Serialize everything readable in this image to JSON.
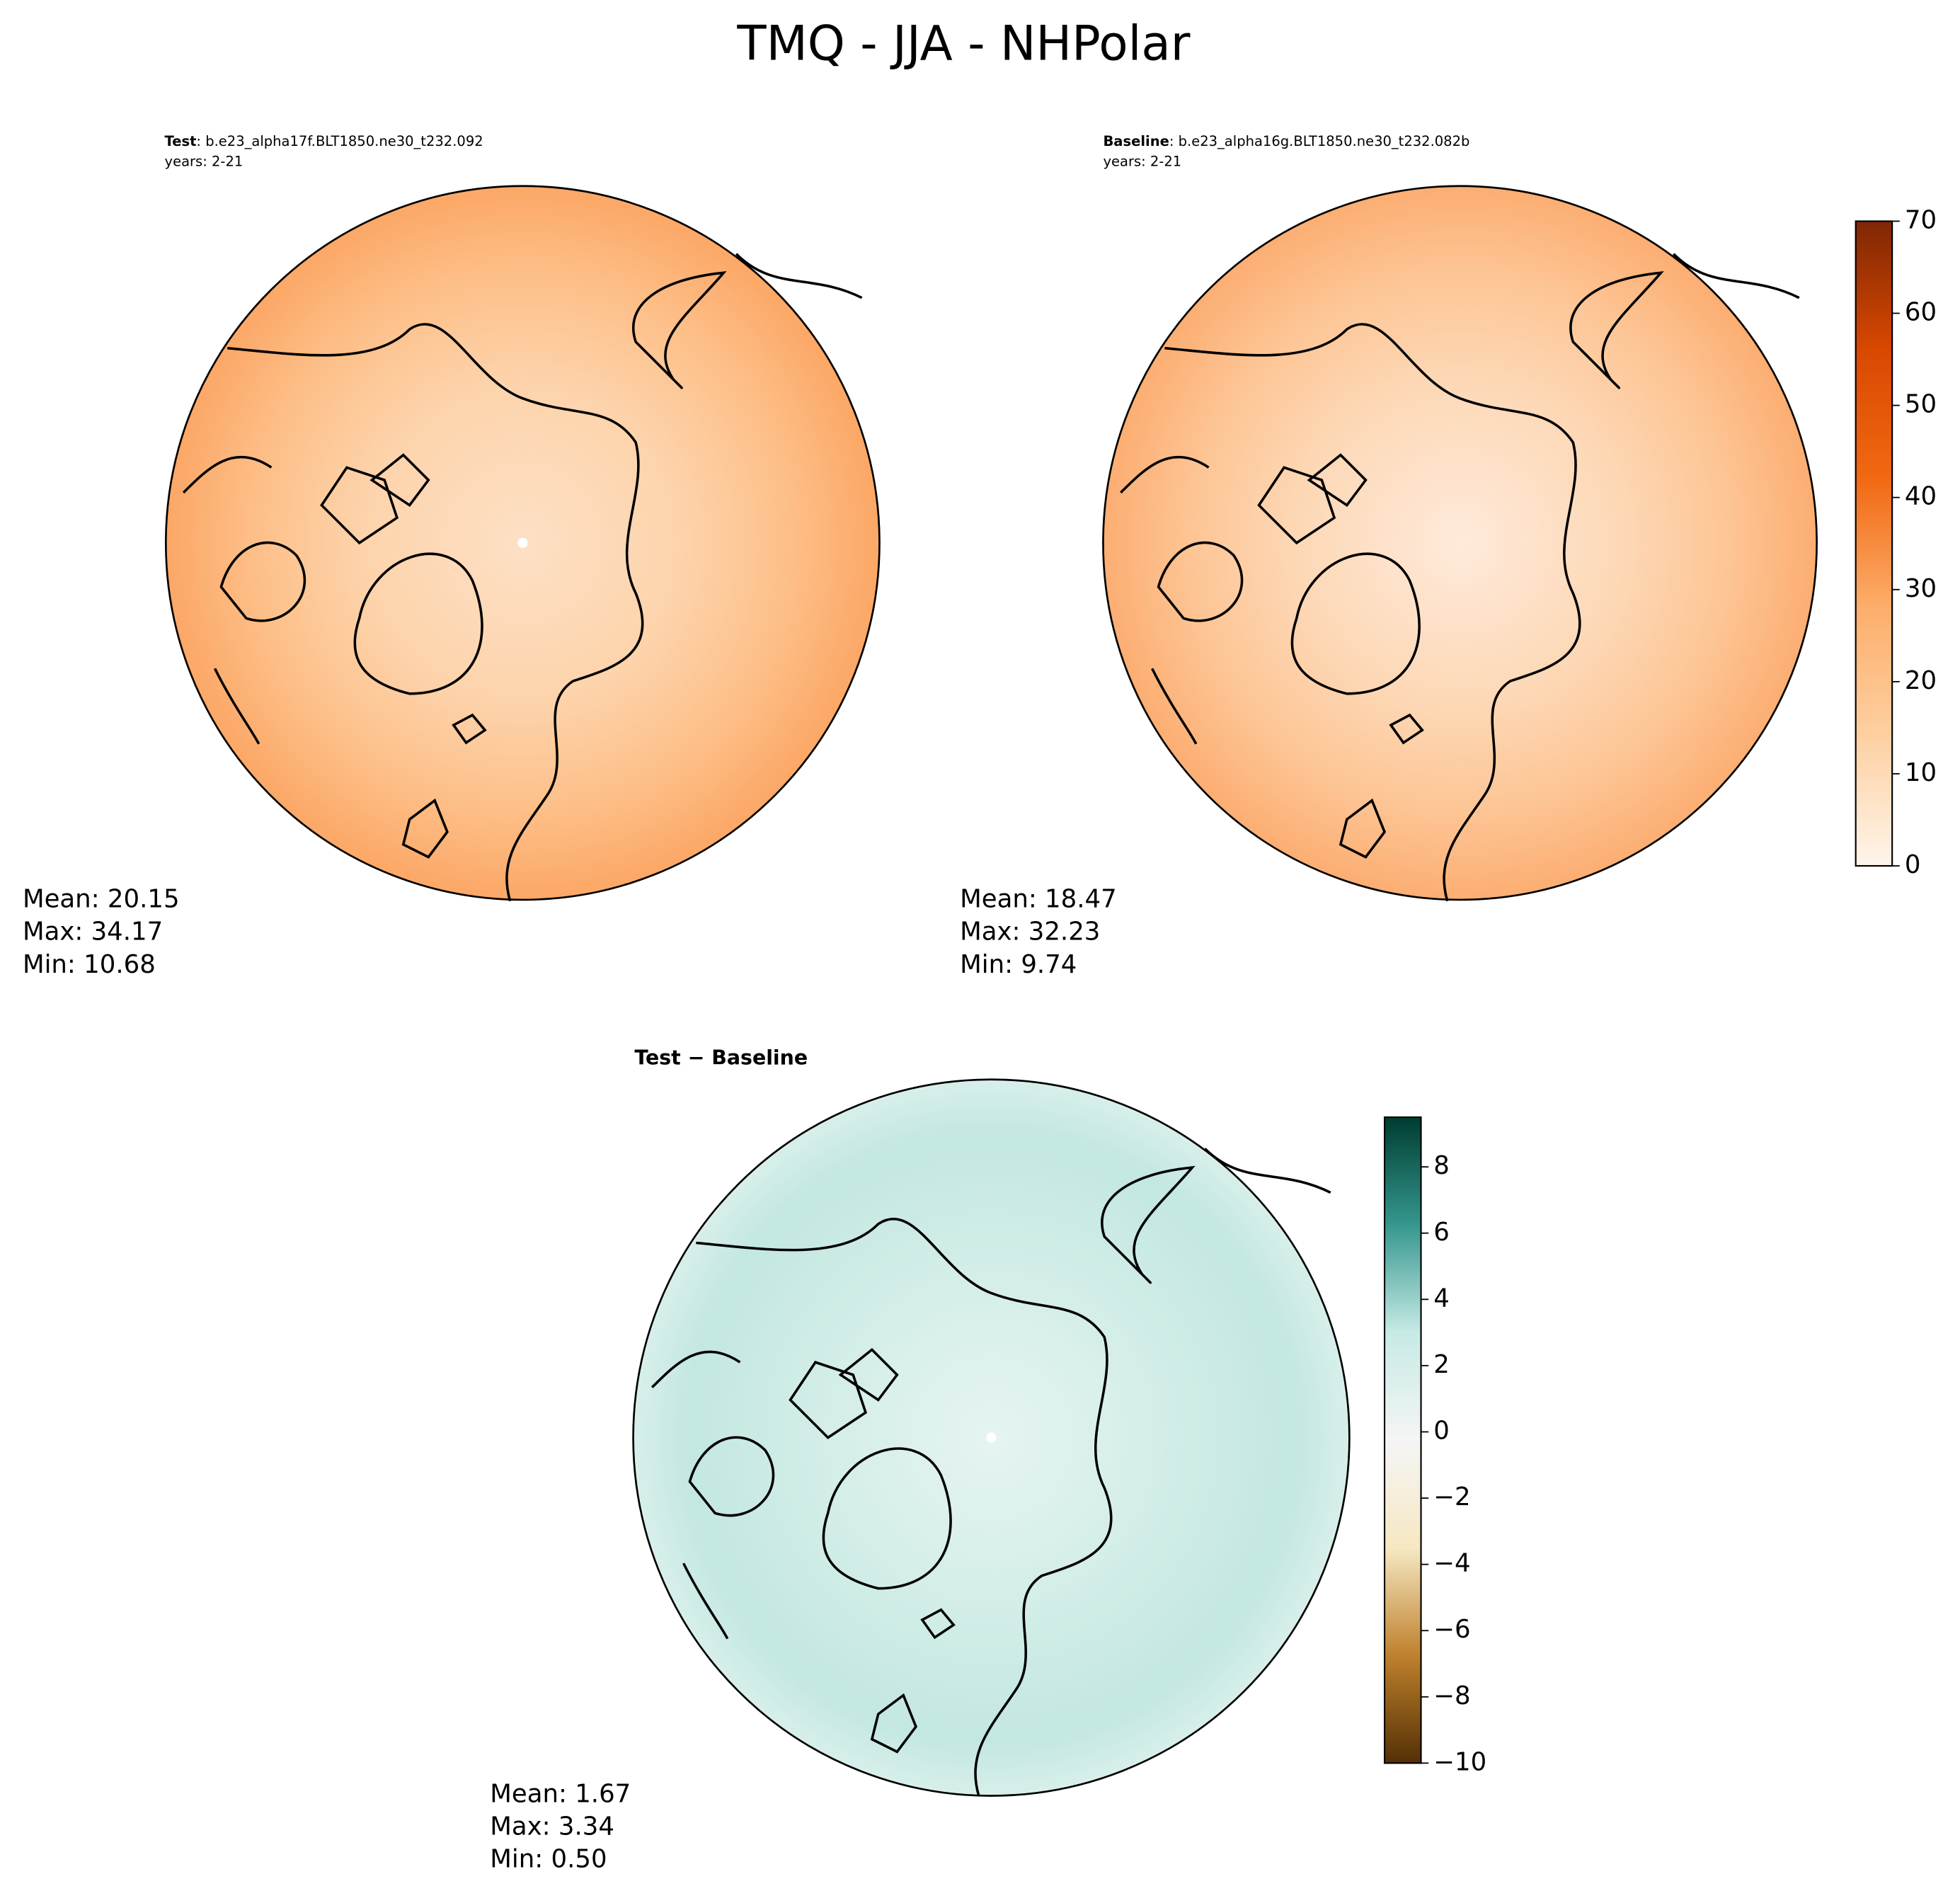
{
  "header": {
    "title": "TMQ - JJA - NHPolar"
  },
  "panels": [
    {
      "label": "Test",
      "case": ": b.e23_alpha17f.BLT1850.ne30_t232.092",
      "years": "years: 2-21",
      "stats": [
        "Mean: 20.15",
        "Max: 34.17",
        "Min: 10.68"
      ]
    },
    {
      "label": "Baseline",
      "case": ": b.e23_alpha16g.BLT1850.ne30_t232.082b",
      "years": "years: 2-21",
      "stats": [
        "Mean: 18.47",
        "Max: 32.23",
        "Min:  9.74"
      ]
    },
    {
      "title": "Test − Baseline",
      "stats": [
        "Mean:  1.67",
        "Max:  3.34",
        "Min:  0.50"
      ]
    }
  ],
  "colorbars": [
    {
      "lim": [
        0,
        70
      ],
      "ticks": [
        0,
        10,
        20,
        30,
        40,
        50,
        60,
        70
      ],
      "colors": [
        "#fff5eb",
        "#fdd0a2",
        "#fdae6b",
        "#f16913",
        "#d94801",
        "#7f2704"
      ]
    },
    {
      "lim": [
        -10,
        9.5
      ],
      "ticks": [
        {
          "value": -10,
          "label": "−10"
        },
        {
          "value": -8,
          "label": "−8"
        },
        {
          "value": -6,
          "label": "−6"
        },
        {
          "value": -4,
          "label": "−4"
        },
        {
          "value": -2,
          "label": "−2"
        },
        0,
        2,
        4,
        6,
        8
      ],
      "colors": [
        "#543005",
        "#bf812d",
        "#f6e8c3",
        "#f5f5f5",
        "#c7eae5",
        "#35978f",
        "#003c30"
      ]
    }
  ]
}
